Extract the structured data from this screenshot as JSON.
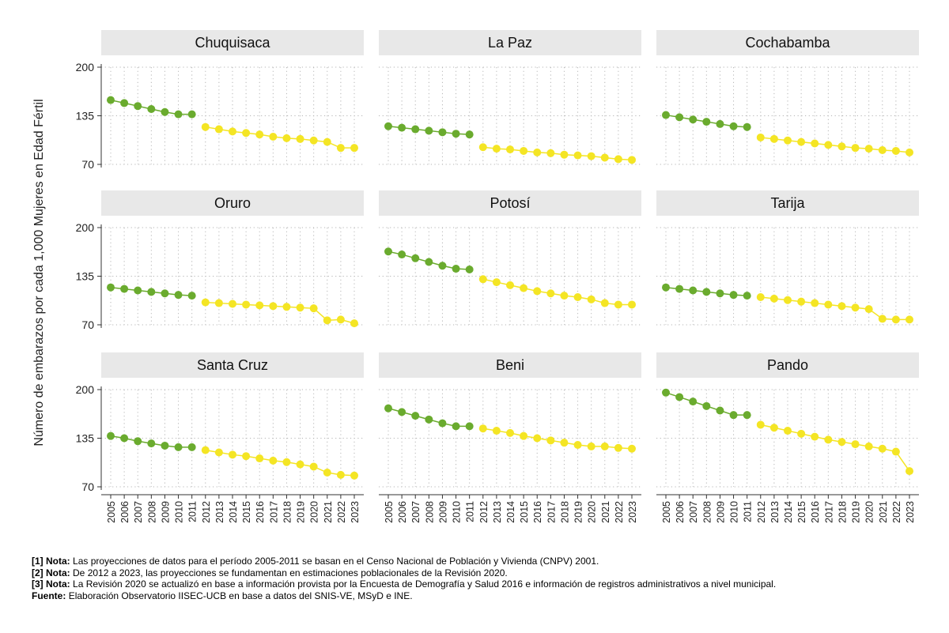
{
  "chart_data": {
    "type": "line",
    "ylabel": "Número de embarazos por cada 1,000 Mujeres en Edad Fértil",
    "ylim": [
      70,
      200
    ],
    "yticks": [
      70,
      135,
      200
    ],
    "x": [
      "2005",
      "2006",
      "2007",
      "2008",
      "2009",
      "2010",
      "2011",
      "2012",
      "2013",
      "2014",
      "2015",
      "2016",
      "2017",
      "2018",
      "2019",
      "2020",
      "2021",
      "2022",
      "2023"
    ],
    "colors": {
      "green": "#6aab2e",
      "yellow": "#f4e524",
      "strip": "#e8e8e8",
      "grid": "#b5b5b5"
    },
    "series_split_index": 7,
    "panels": [
      {
        "name": "Chuquisaca",
        "values": [
          156,
          152,
          148,
          144,
          140,
          137,
          137,
          120,
          117,
          114,
          112,
          110,
          107,
          105,
          104,
          102,
          100,
          92,
          92
        ]
      },
      {
        "name": "La Paz",
        "values": [
          121,
          119,
          117,
          115,
          113,
          111,
          110,
          93,
          91,
          90,
          88,
          86,
          85,
          83,
          82,
          81,
          79,
          77,
          76
        ]
      },
      {
        "name": "Cochabamba",
        "values": [
          136,
          133,
          130,
          127,
          124,
          121,
          120,
          106,
          104,
          102,
          100,
          98,
          96,
          94,
          92,
          91,
          89,
          88,
          86
        ]
      },
      {
        "name": "Oruro",
        "values": [
          120,
          118,
          116,
          114,
          112,
          110,
          109,
          100,
          99,
          98,
          97,
          96,
          95,
          94,
          93,
          92,
          76,
          77,
          72
        ]
      },
      {
        "name": "Potosí",
        "values": [
          168,
          164,
          159,
          154,
          149,
          145,
          144,
          131,
          127,
          123,
          119,
          115,
          112,
          109,
          107,
          104,
          99,
          97,
          97
        ]
      },
      {
        "name": "Tarija",
        "values": [
          120,
          118,
          116,
          114,
          112,
          110,
          109,
          107,
          105,
          103,
          101,
          99,
          97,
          95,
          93,
          91,
          78,
          77,
          77
        ]
      },
      {
        "name": "Santa Cruz",
        "values": [
          138,
          135,
          131,
          128,
          125,
          123,
          123,
          119,
          116,
          113,
          111,
          108,
          105,
          103,
          100,
          97,
          89,
          86,
          85
        ]
      },
      {
        "name": "Beni",
        "values": [
          175,
          170,
          165,
          160,
          155,
          151,
          151,
          148,
          145,
          142,
          138,
          135,
          132,
          129,
          126,
          124,
          124,
          122,
          121
        ]
      },
      {
        "name": "Pando",
        "values": [
          196,
          190,
          184,
          178,
          172,
          166,
          166,
          153,
          149,
          145,
          141,
          137,
          133,
          130,
          127,
          124,
          121,
          117,
          91
        ]
      }
    ]
  },
  "notes": [
    {
      "prefix": "[1] Nota:",
      "text": "Las proyecciones de datos para el período 2005-2011 se basan en el Censo Nacional de Población y Vivienda (CNPV) 2001."
    },
    {
      "prefix": "[2] Nota:",
      "text": "De 2012 a 2023, las proyecciones se fundamentan en estimaciones poblacionales de la Revisión 2020."
    },
    {
      "prefix": "[3] Nota:",
      "text": "La Revisión 2020 se actualizó en base a información provista por la Encuesta de Demografía y Salud 2016 e información de registros administrativos a nivel municipal."
    },
    {
      "prefix": "Fuente:",
      "text": "Elaboración Observatorio IISEC-UCB en base a datos del SNIS-VE, MSyD e INE."
    }
  ]
}
